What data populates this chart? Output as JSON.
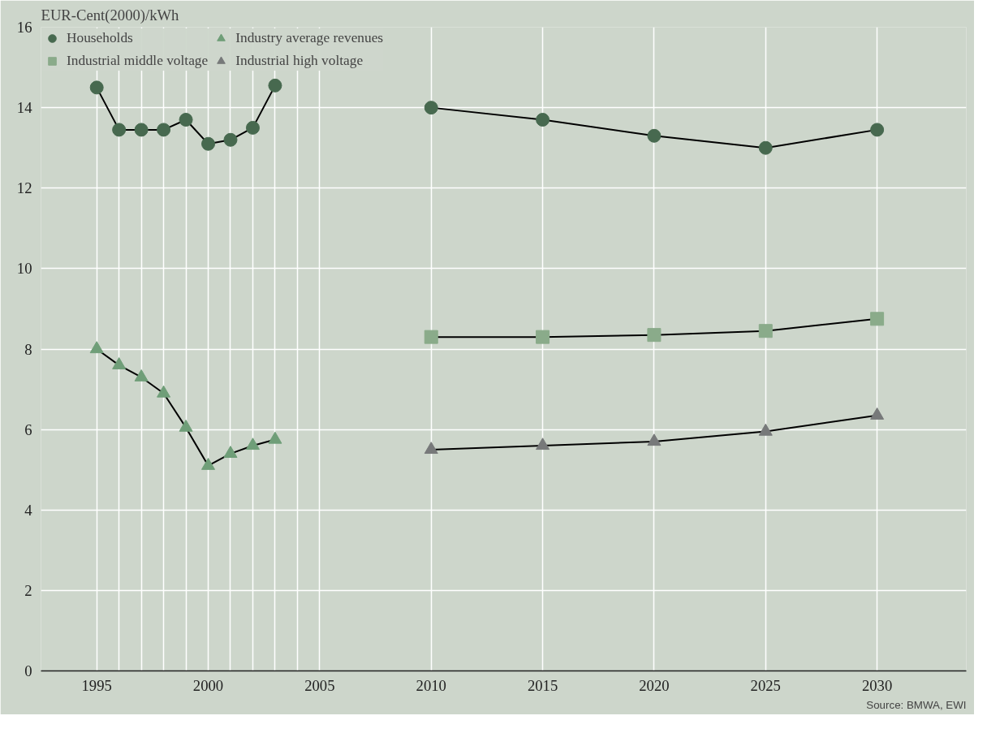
{
  "chart_data": {
    "type": "line",
    "ylabel": "EUR-Cent(2000)/kWh",
    "annotations": [
      "Source: BMWA, EWI"
    ],
    "xlim": [
      1992.5,
      2034
    ],
    "ylim": [
      0,
      16
    ],
    "xticks": [
      1995,
      {
        "value": 1996,
        "label": null
      },
      {
        "value": 1997,
        "label": null
      },
      {
        "value": 1998,
        "label": null
      },
      {
        "value": 1999,
        "label": null
      },
      2000,
      {
        "value": 2001,
        "label": null
      },
      {
        "value": 2002,
        "label": null
      },
      {
        "value": 2003,
        "label": null
      },
      {
        "value": 2004,
        "label": null
      },
      2005,
      2010,
      2015,
      2020,
      2025,
      2030
    ],
    "yticks": [
      0,
      2,
      4,
      6,
      8,
      10,
      12,
      14,
      16
    ],
    "grid": true,
    "legend": "top left",
    "series": [
      {
        "name": "Households",
        "color": "#47694f",
        "marker": "circle",
        "x": [
          1995,
          1996,
          1997,
          1998,
          1999,
          2000,
          2001,
          2002,
          2003,
          2005,
          2010,
          2015,
          2020,
          2025,
          2030
        ],
        "values": [
          14.5,
          13.45,
          13.45,
          13.45,
          13.7,
          13.1,
          13.2,
          13.5,
          14.55,
          null,
          14.0,
          13.7,
          13.3,
          13.0,
          13.45
        ]
      },
      {
        "name": "Industrial middle voltage",
        "color": "#8aab8a",
        "marker": "square",
        "x": [
          2010,
          2015,
          2020,
          2025,
          2030
        ],
        "values": [
          8.3,
          8.3,
          8.35,
          8.45,
          8.75
        ]
      },
      {
        "name": "Industry average revenues",
        "color": "#6f9e78",
        "marker": "triangle",
        "x": [
          1995,
          1996,
          1997,
          1998,
          1999,
          2000,
          2001,
          2002,
          2003
        ],
        "values": [
          8.0,
          7.6,
          7.3,
          6.9,
          6.05,
          5.1,
          5.4,
          5.6,
          5.75
        ]
      },
      {
        "name": "Industrial high voltage",
        "color": "#77797a",
        "marker": "triangle",
        "x": [
          2010,
          2015,
          2020,
          2025,
          2030
        ],
        "values": [
          5.5,
          5.6,
          5.7,
          5.95,
          6.35
        ]
      }
    ]
  }
}
